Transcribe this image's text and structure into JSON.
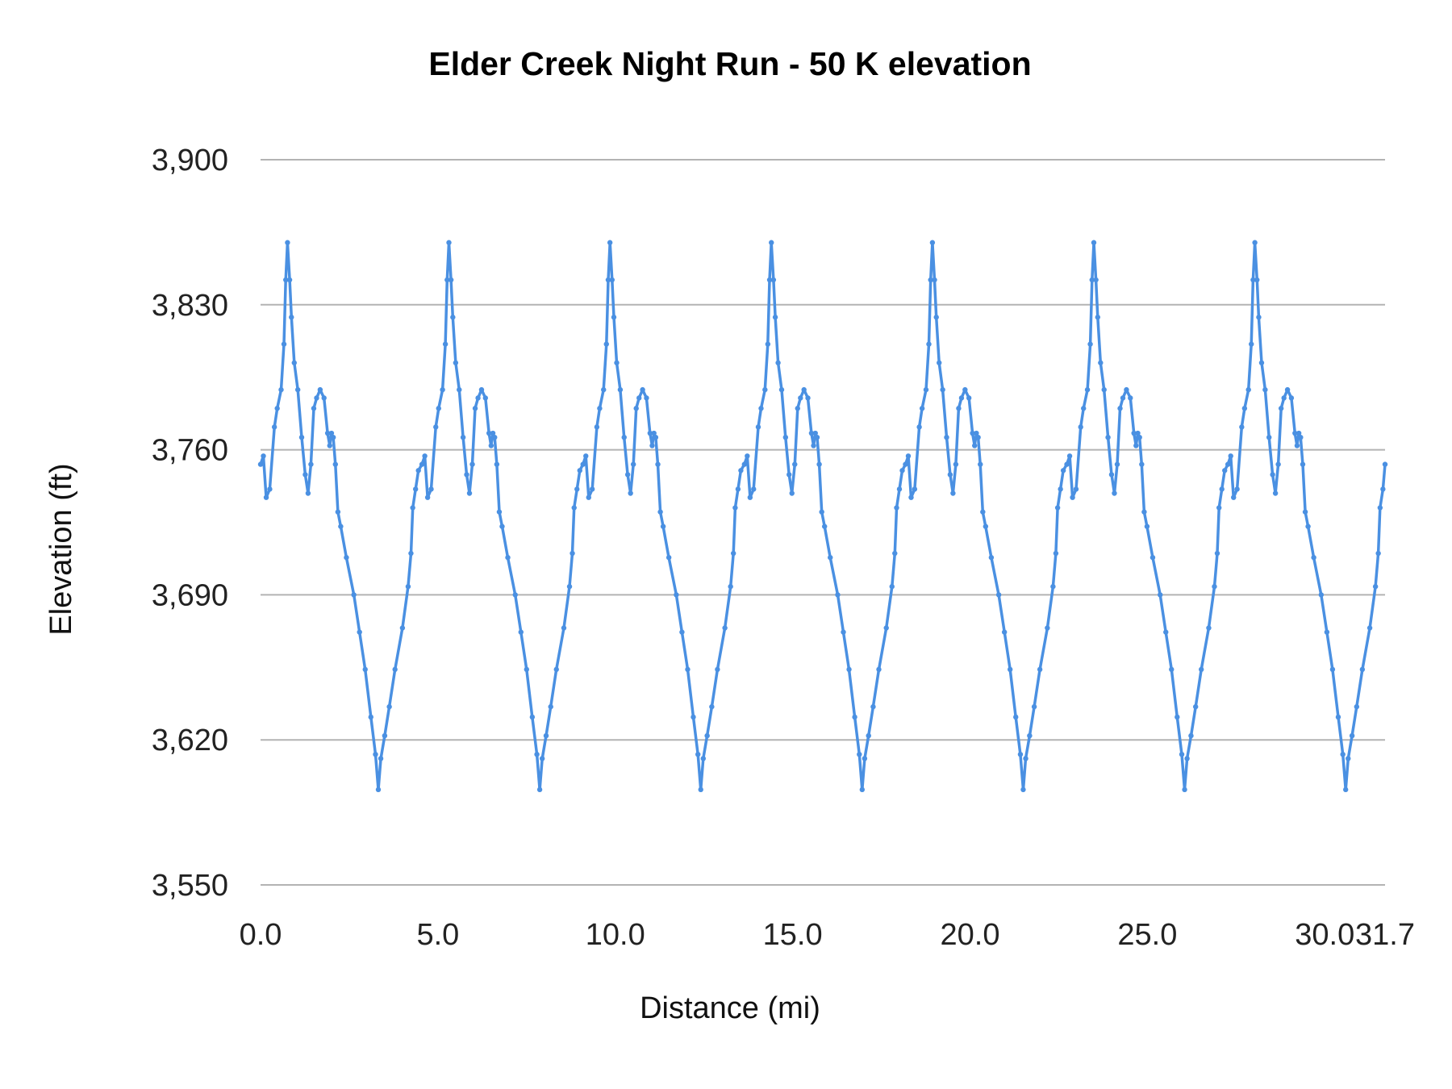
{
  "chart_data": {
    "type": "line",
    "title": "Elder Creek Night Run - 50 K elevation",
    "xlabel": "Distance (mi)",
    "ylabel": "Elevation (ft)",
    "xlim": [
      0,
      31.7
    ],
    "ylim": [
      3550,
      3900
    ],
    "x_ticks": [
      "0.0",
      "5.0",
      "10.0",
      "15.0",
      "20.0",
      "25.0",
      "30.0",
      "31.7"
    ],
    "x_tick_values": [
      0,
      5,
      10,
      15,
      20,
      25,
      30,
      31.7
    ],
    "y_ticks": [
      "3,550",
      "3,620",
      "3,690",
      "3,760",
      "3,830",
      "3,900"
    ],
    "y_tick_values": [
      3550,
      3620,
      3690,
      3760,
      3830,
      3900
    ],
    "grid": "horizontal",
    "legend": "none",
    "color": "#4a90e2",
    "markers": true,
    "series": [
      {
        "x": [
          0.0,
          0.08,
          0.16,
          0.26,
          0.39,
          0.47,
          0.58,
          0.66,
          0.71,
          0.76,
          0.82,
          0.87,
          0.95,
          1.05,
          1.16,
          1.26,
          1.34,
          1.42,
          1.5,
          1.58,
          1.68,
          1.79,
          1.89,
          1.95,
          2.0,
          2.05,
          2.11,
          2.18,
          2.26,
          2.42,
          2.63,
          2.79,
          2.95,
          3.11,
          3.24,
          3.32,
          3.39,
          3.5,
          3.63,
          3.79,
          4.0,
          4.16,
          4.24,
          4.29,
          4.37,
          4.45,
          4.55,
          4.63,
          4.71,
          4.81,
          4.94,
          5.02,
          5.13,
          5.21,
          5.26,
          5.31,
          5.37,
          5.42,
          5.5,
          5.6,
          5.71,
          5.81,
          5.89,
          5.97,
          6.05,
          6.13,
          6.23,
          6.34,
          6.44,
          6.5,
          6.55,
          6.6,
          6.66,
          6.73,
          6.81,
          6.97,
          7.18,
          7.34,
          7.5,
          7.66,
          7.79,
          7.87,
          7.94,
          8.05,
          8.18,
          8.34,
          8.55,
          8.71,
          8.79,
          8.84,
          8.92,
          9.0,
          9.09,
          9.17,
          9.25,
          9.35,
          9.48,
          9.56,
          9.67,
          9.75,
          9.8,
          9.85,
          9.91,
          9.96,
          10.04,
          10.14,
          10.25,
          10.35,
          10.43,
          10.51,
          10.59,
          10.67,
          10.77,
          10.88,
          10.98,
          11.04,
          11.09,
          11.14,
          11.2,
          11.27,
          11.35,
          11.51,
          11.72,
          11.88,
          12.04,
          12.2,
          12.33,
          12.41,
          12.48,
          12.59,
          12.72,
          12.88,
          13.09,
          13.25,
          13.33,
          13.38,
          13.46,
          13.54,
          13.64,
          13.72,
          13.8,
          13.9,
          14.03,
          14.11,
          14.22,
          14.3,
          14.35,
          14.4,
          14.46,
          14.51,
          14.59,
          14.69,
          14.8,
          14.9,
          14.98,
          15.06,
          15.14,
          15.22,
          15.32,
          15.43,
          15.53,
          15.59,
          15.64,
          15.69,
          15.75,
          15.82,
          15.9,
          16.06,
          16.27,
          16.43,
          16.59,
          16.75,
          16.88,
          16.96,
          17.03,
          17.14,
          17.27,
          17.43,
          17.64,
          17.8,
          17.88,
          17.93,
          18.01,
          18.09,
          18.18,
          18.26,
          18.34,
          18.44,
          18.57,
          18.65,
          18.76,
          18.84,
          18.89,
          18.94,
          19.0,
          19.05,
          19.13,
          19.23,
          19.34,
          19.44,
          19.52,
          19.6,
          19.68,
          19.76,
          19.86,
          19.97,
          20.07,
          20.13,
          20.18,
          20.23,
          20.29,
          20.36,
          20.44,
          20.6,
          20.81,
          20.97,
          21.13,
          21.29,
          21.42,
          21.5,
          21.57,
          21.68,
          21.81,
          21.97,
          22.18,
          22.34,
          22.42,
          22.47,
          22.55,
          22.63,
          22.73,
          22.81,
          22.89,
          22.99,
          23.12,
          23.2,
          23.31,
          23.39,
          23.44,
          23.49,
          23.55,
          23.6,
          23.68,
          23.78,
          23.89,
          23.99,
          24.07,
          24.15,
          24.23,
          24.31,
          24.41,
          24.52,
          24.62,
          24.68,
          24.73,
          24.78,
          24.84,
          24.91,
          24.99,
          25.15,
          25.36,
          25.52,
          25.68,
          25.84,
          25.97,
          26.05,
          26.12,
          26.23,
          26.36,
          26.52,
          26.73,
          26.89,
          26.97,
          27.02,
          27.1,
          27.18,
          27.27,
          27.35,
          27.43,
          27.53,
          27.66,
          27.74,
          27.85,
          27.93,
          27.98,
          28.03,
          28.09,
          28.14,
          28.22,
          28.32,
          28.43,
          28.53,
          28.61,
          28.69,
          28.77,
          28.85,
          28.95,
          29.06,
          29.16,
          29.22,
          29.27,
          29.32,
          29.38,
          29.45,
          29.53,
          29.69,
          29.9,
          30.06,
          30.22,
          30.38,
          30.51,
          30.59,
          30.66,
          30.77,
          30.9,
          31.06,
          31.27,
          31.43,
          31.51,
          31.56,
          31.64,
          31.7
        ],
        "y": [
          3753,
          3757,
          3737,
          3741,
          3771,
          3780,
          3789,
          3811,
          3842,
          3860,
          3842,
          3824,
          3802,
          3789,
          3766,
          3748,
          3739,
          3753,
          3780,
          3785,
          3789,
          3785,
          3768,
          3762,
          3768,
          3766,
          3753,
          3730,
          3723,
          3708,
          3690,
          3672,
          3654,
          3631,
          3613,
          3596,
          3611,
          3622,
          3636,
          3654,
          3674,
          3694,
          3710,
          3732,
          3741,
          3750,
          3753,
          3757,
          3737,
          3741,
          3771,
          3780,
          3789,
          3811,
          3842,
          3860,
          3842,
          3824,
          3802,
          3789,
          3766,
          3748,
          3739,
          3753,
          3780,
          3785,
          3789,
          3785,
          3768,
          3762,
          3768,
          3766,
          3753,
          3730,
          3723,
          3708,
          3690,
          3672,
          3654,
          3631,
          3613,
          3596,
          3611,
          3622,
          3636,
          3654,
          3674,
          3694,
          3710,
          3732,
          3741,
          3750,
          3753,
          3757,
          3737,
          3741,
          3771,
          3780,
          3789,
          3811,
          3842,
          3860,
          3842,
          3824,
          3802,
          3789,
          3766,
          3748,
          3739,
          3753,
          3780,
          3785,
          3789,
          3785,
          3768,
          3762,
          3768,
          3766,
          3753,
          3730,
          3723,
          3708,
          3690,
          3672,
          3654,
          3631,
          3613,
          3596,
          3611,
          3622,
          3636,
          3654,
          3674,
          3694,
          3710,
          3732,
          3741,
          3750,
          3753,
          3757,
          3737,
          3741,
          3771,
          3780,
          3789,
          3811,
          3842,
          3860,
          3842,
          3824,
          3802,
          3789,
          3766,
          3748,
          3739,
          3753,
          3780,
          3785,
          3789,
          3785,
          3768,
          3762,
          3768,
          3766,
          3753,
          3730,
          3723,
          3708,
          3690,
          3672,
          3654,
          3631,
          3613,
          3596,
          3611,
          3622,
          3636,
          3654,
          3674,
          3694,
          3710,
          3732,
          3741,
          3750,
          3753,
          3757,
          3737,
          3741,
          3771,
          3780,
          3789,
          3811,
          3842,
          3860,
          3842,
          3824,
          3802,
          3789,
          3766,
          3748,
          3739,
          3753,
          3780,
          3785,
          3789,
          3785,
          3768,
          3762,
          3768,
          3766,
          3753,
          3730,
          3723,
          3708,
          3690,
          3672,
          3654,
          3631,
          3613,
          3596,
          3611,
          3622,
          3636,
          3654,
          3674,
          3694,
          3710,
          3732,
          3741,
          3750,
          3753,
          3757,
          3737,
          3741,
          3771,
          3780,
          3789,
          3811,
          3842,
          3860,
          3842,
          3824,
          3802,
          3789,
          3766,
          3748,
          3739,
          3753,
          3780,
          3785,
          3789,
          3785,
          3768,
          3762,
          3768,
          3766,
          3753,
          3730,
          3723,
          3708,
          3690,
          3672,
          3654,
          3631,
          3613,
          3596,
          3611,
          3622,
          3636,
          3654,
          3674,
          3694,
          3710,
          3732,
          3741,
          3750,
          3753,
          3757,
          3737,
          3741,
          3771,
          3780,
          3789,
          3811,
          3842,
          3860,
          3842,
          3824,
          3802,
          3789,
          3766,
          3748,
          3739,
          3753,
          3780,
          3785,
          3789,
          3785,
          3768,
          3762,
          3768,
          3766,
          3753,
          3730,
          3723,
          3708,
          3690,
          3672,
          3654,
          3631,
          3613,
          3596,
          3611,
          3622,
          3636,
          3654,
          3674,
          3694,
          3710,
          3732,
          3741,
          3753
        ]
      }
    ]
  }
}
